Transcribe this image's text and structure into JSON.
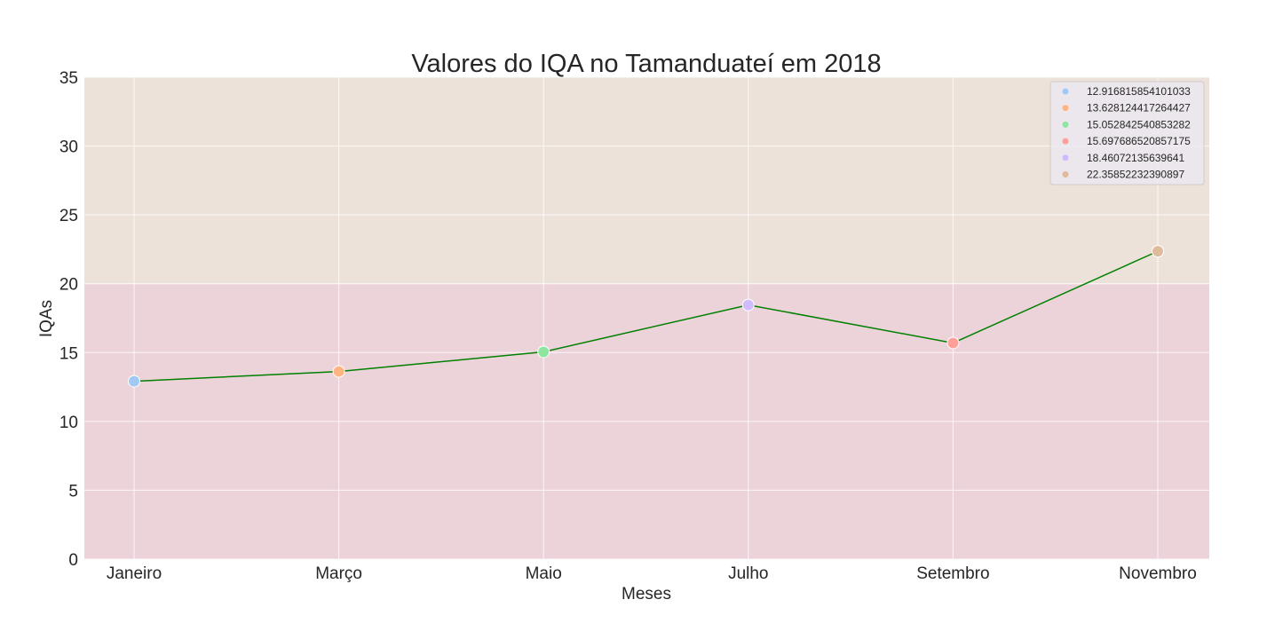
{
  "chart_data": {
    "type": "line",
    "title": "Valores do IQA no Tamanduateí em 2018",
    "xlabel": "Meses",
    "ylabel": "IQAs",
    "categories": [
      "Janeiro",
      "Março",
      "Maio",
      "Julho",
      "Setembro",
      "Novembro"
    ],
    "values": [
      12.916815854101033,
      13.628124417264427,
      15.052842540853282,
      18.46072135639641,
      15.697686520857175,
      22.35852232390897
    ],
    "ylim": [
      0,
      35
    ],
    "yticks": [
      "0",
      "5",
      "10",
      "15",
      "20",
      "25",
      "30",
      "35"
    ],
    "grid": true,
    "line_color": "#008000",
    "bands": [
      {
        "from": 0,
        "to": 20,
        "color": "#ecd3da"
      },
      {
        "from": 20,
        "to": 35,
        "color": "#ece2d9"
      }
    ],
    "legend": {
      "placement": "top-right",
      "entries": [
        {
          "label": "12.916815854101033",
          "color": "#a1c9f4"
        },
        {
          "label": "13.628124417264427",
          "color": "#ffb482"
        },
        {
          "label": "15.052842540853282",
          "color": "#8de5a1"
        },
        {
          "label": "15.697686520857175",
          "color": "#ff9f9b"
        },
        {
          "label": "18.46072135639641",
          "color": "#d0bbff"
        },
        {
          "label": "22.35852232390897",
          "color": "#debb9b"
        }
      ]
    },
    "point_colors": [
      "#a1c9f4",
      "#ffb482",
      "#8de5a1",
      "#d0bbff",
      "#ff9f9b",
      "#debb9b"
    ]
  }
}
